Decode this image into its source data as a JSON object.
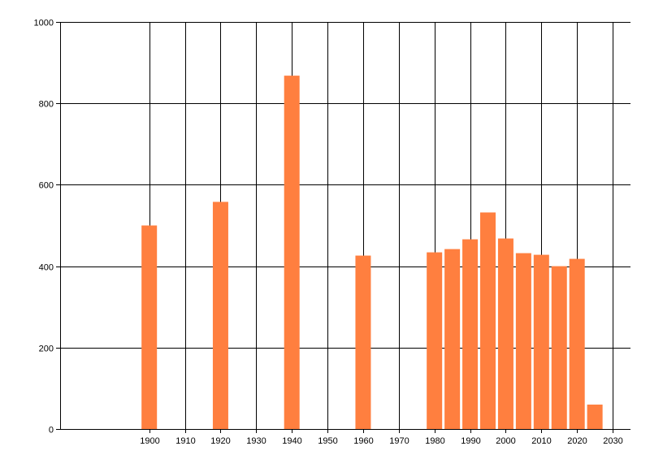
{
  "chart_data": {
    "type": "bar",
    "x": [
      1900,
      1920,
      1940,
      1960,
      1980,
      1985,
      1990,
      1995,
      2000,
      2005,
      2010,
      2015,
      2020,
      2025
    ],
    "values": [
      500,
      558,
      868,
      426,
      434,
      442,
      466,
      532,
      468,
      432,
      428,
      400,
      418,
      60
    ],
    "xlim": [
      1875,
      2035
    ],
    "ylim": [
      0,
      1000
    ],
    "xticks": [
      1900,
      1910,
      1920,
      1930,
      1940,
      1950,
      1960,
      1970,
      1980,
      1990,
      2000,
      2010,
      2020,
      2030
    ],
    "yticks": [
      0,
      200,
      400,
      600,
      800,
      1000
    ],
    "grid": true,
    "bar_color": "#ff7f3f",
    "grid_color": "#000000",
    "title": "",
    "xlabel": "",
    "ylabel": ""
  }
}
